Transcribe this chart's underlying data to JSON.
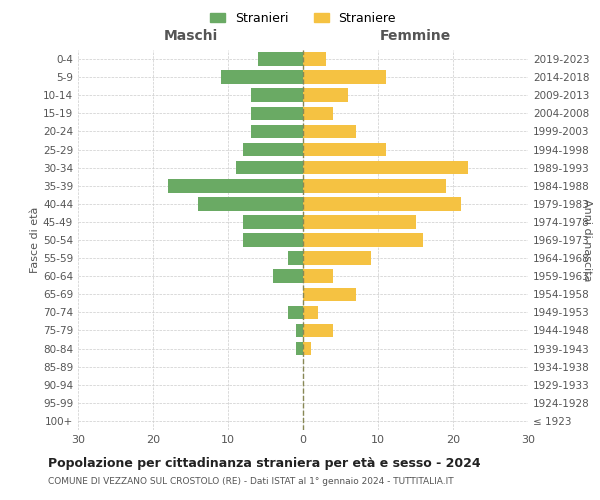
{
  "age_groups": [
    "100+",
    "95-99",
    "90-94",
    "85-89",
    "80-84",
    "75-79",
    "70-74",
    "65-69",
    "60-64",
    "55-59",
    "50-54",
    "45-49",
    "40-44",
    "35-39",
    "30-34",
    "25-29",
    "20-24",
    "15-19",
    "10-14",
    "5-9",
    "0-4"
  ],
  "birth_years": [
    "≤ 1923",
    "1924-1928",
    "1929-1933",
    "1934-1938",
    "1939-1943",
    "1944-1948",
    "1949-1953",
    "1954-1958",
    "1959-1963",
    "1964-1968",
    "1969-1973",
    "1974-1978",
    "1979-1983",
    "1984-1988",
    "1989-1993",
    "1994-1998",
    "1999-2003",
    "2004-2008",
    "2009-2013",
    "2014-2018",
    "2019-2023"
  ],
  "males": [
    0,
    0,
    0,
    0,
    1,
    1,
    2,
    0,
    4,
    2,
    8,
    8,
    14,
    18,
    9,
    8,
    7,
    7,
    7,
    11,
    6
  ],
  "females": [
    0,
    0,
    0,
    0,
    1,
    4,
    2,
    7,
    4,
    9,
    16,
    15,
    21,
    19,
    22,
    11,
    7,
    4,
    6,
    11,
    3
  ],
  "male_color": "#6aaa64",
  "female_color": "#f5c242",
  "male_label": "Stranieri",
  "female_label": "Straniere",
  "title": "Popolazione per cittadinanza straniera per età e sesso - 2024",
  "subtitle": "COMUNE DI VEZZANO SUL CROSTOLO (RE) - Dati ISTAT al 1° gennaio 2024 - TUTTITALIA.IT",
  "ylabel_left": "Fasce di età",
  "ylabel_right": "Anni di nascita",
  "header_left": "Maschi",
  "header_right": "Femmine",
  "xlim": 30,
  "background_color": "#ffffff",
  "grid_color": "#cccccc"
}
